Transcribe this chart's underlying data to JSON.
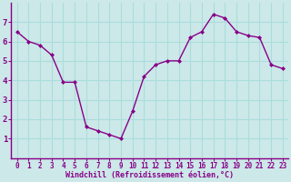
{
  "x": [
    0,
    1,
    2,
    3,
    4,
    5,
    6,
    7,
    8,
    9,
    10,
    11,
    12,
    13,
    14,
    15,
    16,
    17,
    18,
    19,
    20,
    21,
    22,
    23
  ],
  "y": [
    6.5,
    6.0,
    5.8,
    5.3,
    3.9,
    3.9,
    1.6,
    1.4,
    1.2,
    1.0,
    2.4,
    4.2,
    4.8,
    5.0,
    5.0,
    6.2,
    6.5,
    7.4,
    7.2,
    6.5,
    6.3,
    6.2,
    4.8,
    4.6
  ],
  "line_color": "#880088",
  "marker": "D",
  "marker_size": 2.0,
  "bg_color": "#cce8e8",
  "grid_color": "#aadddd",
  "axis_color": "#880088",
  "xlabel": "Windchill (Refroidissement éolien,°C)",
  "xlabel_color": "#880088",
  "tick_color": "#880088",
  "ylim": [
    0,
    8
  ],
  "xlim": [
    -0.5,
    23.5
  ],
  "yticks": [
    1,
    2,
    3,
    4,
    5,
    6,
    7
  ],
  "xticks": [
    0,
    1,
    2,
    3,
    4,
    5,
    6,
    7,
    8,
    9,
    10,
    11,
    12,
    13,
    14,
    15,
    16,
    17,
    18,
    19,
    20,
    21,
    22,
    23
  ],
  "xtick_labels": [
    "0",
    "1",
    "2",
    "3",
    "4",
    "5",
    "6",
    "7",
    "8",
    "9",
    "10",
    "11",
    "12",
    "13",
    "14",
    "15",
    "16",
    "17",
    "18",
    "19",
    "20",
    "21",
    "22",
    "23"
  ],
  "line_width": 1.0,
  "tick_fontsize": 5.5,
  "ylabel_fontsize": 6.5,
  "xlabel_fontsize": 6.0
}
